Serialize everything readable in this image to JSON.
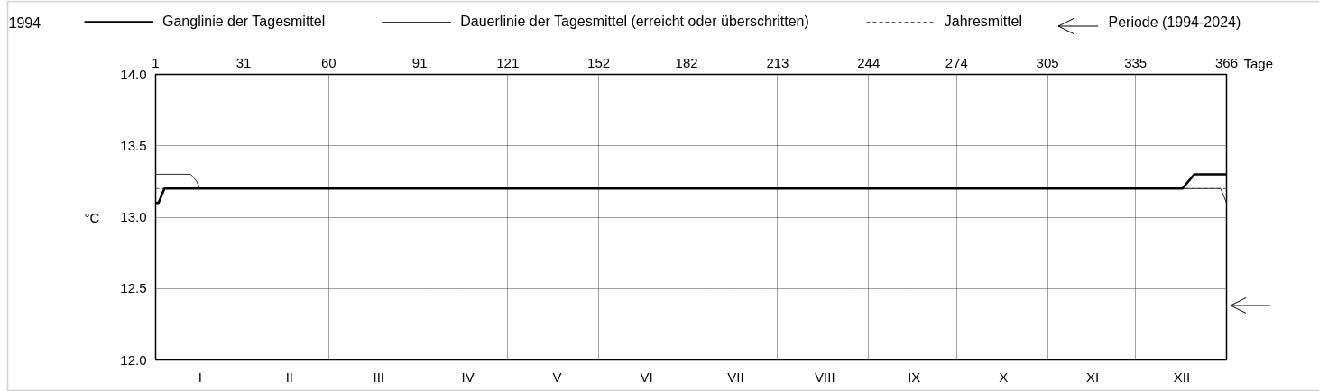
{
  "chart_data": {
    "type": "line",
    "title": "1994",
    "ylabel": "°C",
    "x2label": "Tage",
    "categories": [
      "I",
      "II",
      "III",
      "IV",
      "V",
      "VI",
      "VII",
      "VIII",
      "IX",
      "X",
      "XI",
      "XII"
    ],
    "x2lim": [
      1,
      366
    ],
    "x2ticks": [
      1,
      31,
      60,
      91,
      121,
      152,
      182,
      213,
      244,
      274,
      305,
      335,
      366
    ],
    "ylim": [
      12.0,
      14.0
    ],
    "yticks": [
      {
        "value": 12,
        "label": "12.0"
      },
      12.5,
      {
        "value": 13,
        "label": "13.0"
      },
      13.5,
      {
        "value": 14,
        "label": "14.0"
      }
    ],
    "series": [
      {
        "name": "Ganglinie der Tagesmittel",
        "color": "#000000",
        "axis": "x2",
        "x": [
          1,
          2,
          4,
          351,
          355,
          366
        ],
        "values": [
          13.1,
          13.1,
          13.2,
          13.2,
          13.3,
          13.3
        ]
      },
      {
        "name": "Dauerlinie der Tagesmittel (erreicht oder überschritten)",
        "color": "#333333",
        "axis": "x2",
        "x": [
          1,
          13,
          15,
          16,
          364,
          366
        ],
        "values": [
          13.3,
          13.3,
          13.25,
          13.2,
          13.2,
          13.1
        ]
      }
    ],
    "ref_lines": [
      {
        "axis": "y",
        "value": 13.2,
        "label": "Jahresmittel",
        "color": "#555555",
        "line_style": "dashed"
      }
    ],
    "annotations": [
      "Periode (1994-2024)"
    ],
    "grid": true,
    "legend": "top"
  }
}
